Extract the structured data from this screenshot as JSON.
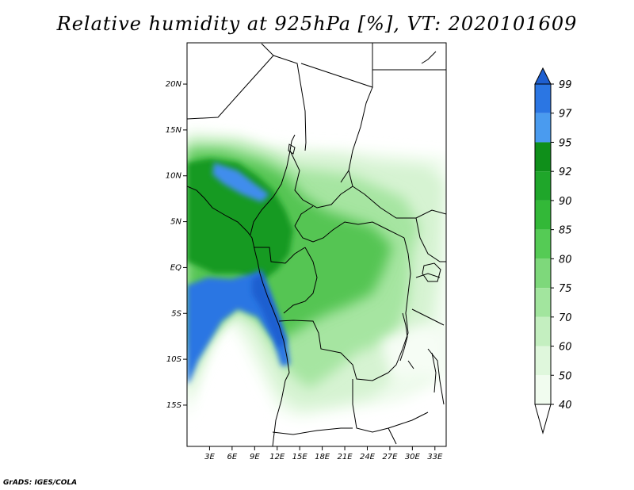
{
  "title": "Relative humidity at 925hPa [%], VT: 2020101609",
  "credit": "GrADS: IGES/COLA",
  "map": {
    "lon_range": [
      0,
      34.5
    ],
    "lat_range": [
      -19.5,
      24.5
    ],
    "lon_ticks": [
      {
        "v": 3,
        "label": "3E"
      },
      {
        "v": 6,
        "label": "6E"
      },
      {
        "v": 9,
        "label": "9E"
      },
      {
        "v": 12,
        "label": "12E"
      },
      {
        "v": 15,
        "label": "15E"
      },
      {
        "v": 18,
        "label": "18E"
      },
      {
        "v": 21,
        "label": "21E"
      },
      {
        "v": 24,
        "label": "24E"
      },
      {
        "v": 27,
        "label": "27E"
      },
      {
        "v": 30,
        "label": "30E"
      },
      {
        "v": 33,
        "label": "33E"
      }
    ],
    "lat_ticks": [
      {
        "v": 20,
        "label": "20N"
      },
      {
        "v": 15,
        "label": "15N"
      },
      {
        "v": 10,
        "label": "10N"
      },
      {
        "v": 5,
        "label": "5N"
      },
      {
        "v": 0,
        "label": "EQ"
      },
      {
        "v": -5,
        "label": "5S"
      },
      {
        "v": -10,
        "label": "10S"
      },
      {
        "v": -15,
        "label": "15S"
      }
    ]
  },
  "colorbar": {
    "levels": [
      "99",
      "97",
      "95",
      "92",
      "90",
      "85",
      "80",
      "75",
      "70",
      "60",
      "50",
      "40"
    ],
    "colors": [
      "#1e5fd0",
      "#2b76e3",
      "#4a9bef",
      "#0f8f1a",
      "#1fa62a",
      "#33b838",
      "#55cb55",
      "#7ed87b",
      "#a2e59e",
      "#c4efc0",
      "#dff7dc",
      "#f1fcef",
      "#ffffff"
    ]
  }
}
